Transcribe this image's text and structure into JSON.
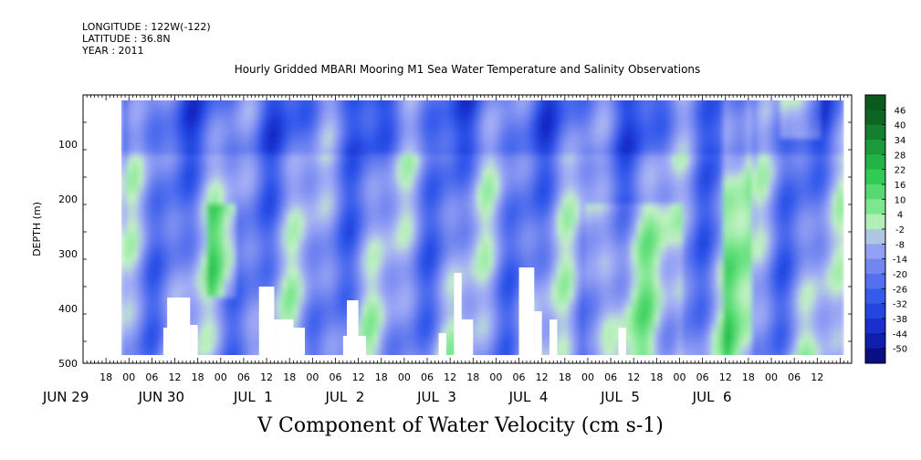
{
  "header": {
    "longitude": "LONGITUDE : 122W(-122)",
    "latitude": "LATITUDE : 36.8N",
    "year": "YEAR : 2011"
  },
  "chart_data": {
    "type": "heatmap",
    "title": "Hourly Gridded MBARI Mooring M1 Sea Water Temperature and Salinity Observations",
    "xlabel": "V Component of Water Velocity (cm s-1)",
    "ylabel": "DEPTH (m)",
    "x_unit": "hours since JUN 29 00Z 2011",
    "xlim": [
      -12,
      189
    ],
    "data_extent_x": [
      -2,
      187
    ],
    "ylim": [
      500,
      10
    ],
    "data_extent_y": [
      20,
      485
    ],
    "y_ticks": [
      100,
      200,
      300,
      400,
      500
    ],
    "x_hour_ticks": [
      "18",
      "00",
      "06",
      "12",
      "18",
      "00",
      "06",
      "12",
      "18",
      "00",
      "06",
      "12",
      "18",
      "00",
      "06",
      "12",
      "18",
      "00",
      "06",
      "12",
      "18",
      "00",
      "06",
      "12",
      "18",
      "00",
      "06",
      "12",
      "18",
      "00",
      "06",
      "12"
    ],
    "x_day_labels": [
      "JUN 29",
      "JUN 30",
      "JUL  1",
      "JUL  2",
      "JUL  3",
      "JUL  4",
      "JUL  5",
      "JUL  6"
    ],
    "colorbar": {
      "levels": [
        "46",
        "40",
        "34",
        "28",
        "22",
        "16",
        "10",
        "4",
        "-2",
        "-8",
        "-14",
        "-20",
        "-26",
        "-32",
        "-38",
        "-44",
        "-50"
      ],
      "range": [
        -50,
        52
      ]
    },
    "grid": false,
    "gaps_note": "white gaps near bottom indicate missing data",
    "colors": {
      "negative_strong": "#1a4fe0",
      "negative_weak": "#9aa6ef",
      "positive_weak": "#a6eeb0",
      "positive_strong": "#1fcc4a",
      "frame": "#000000"
    }
  }
}
